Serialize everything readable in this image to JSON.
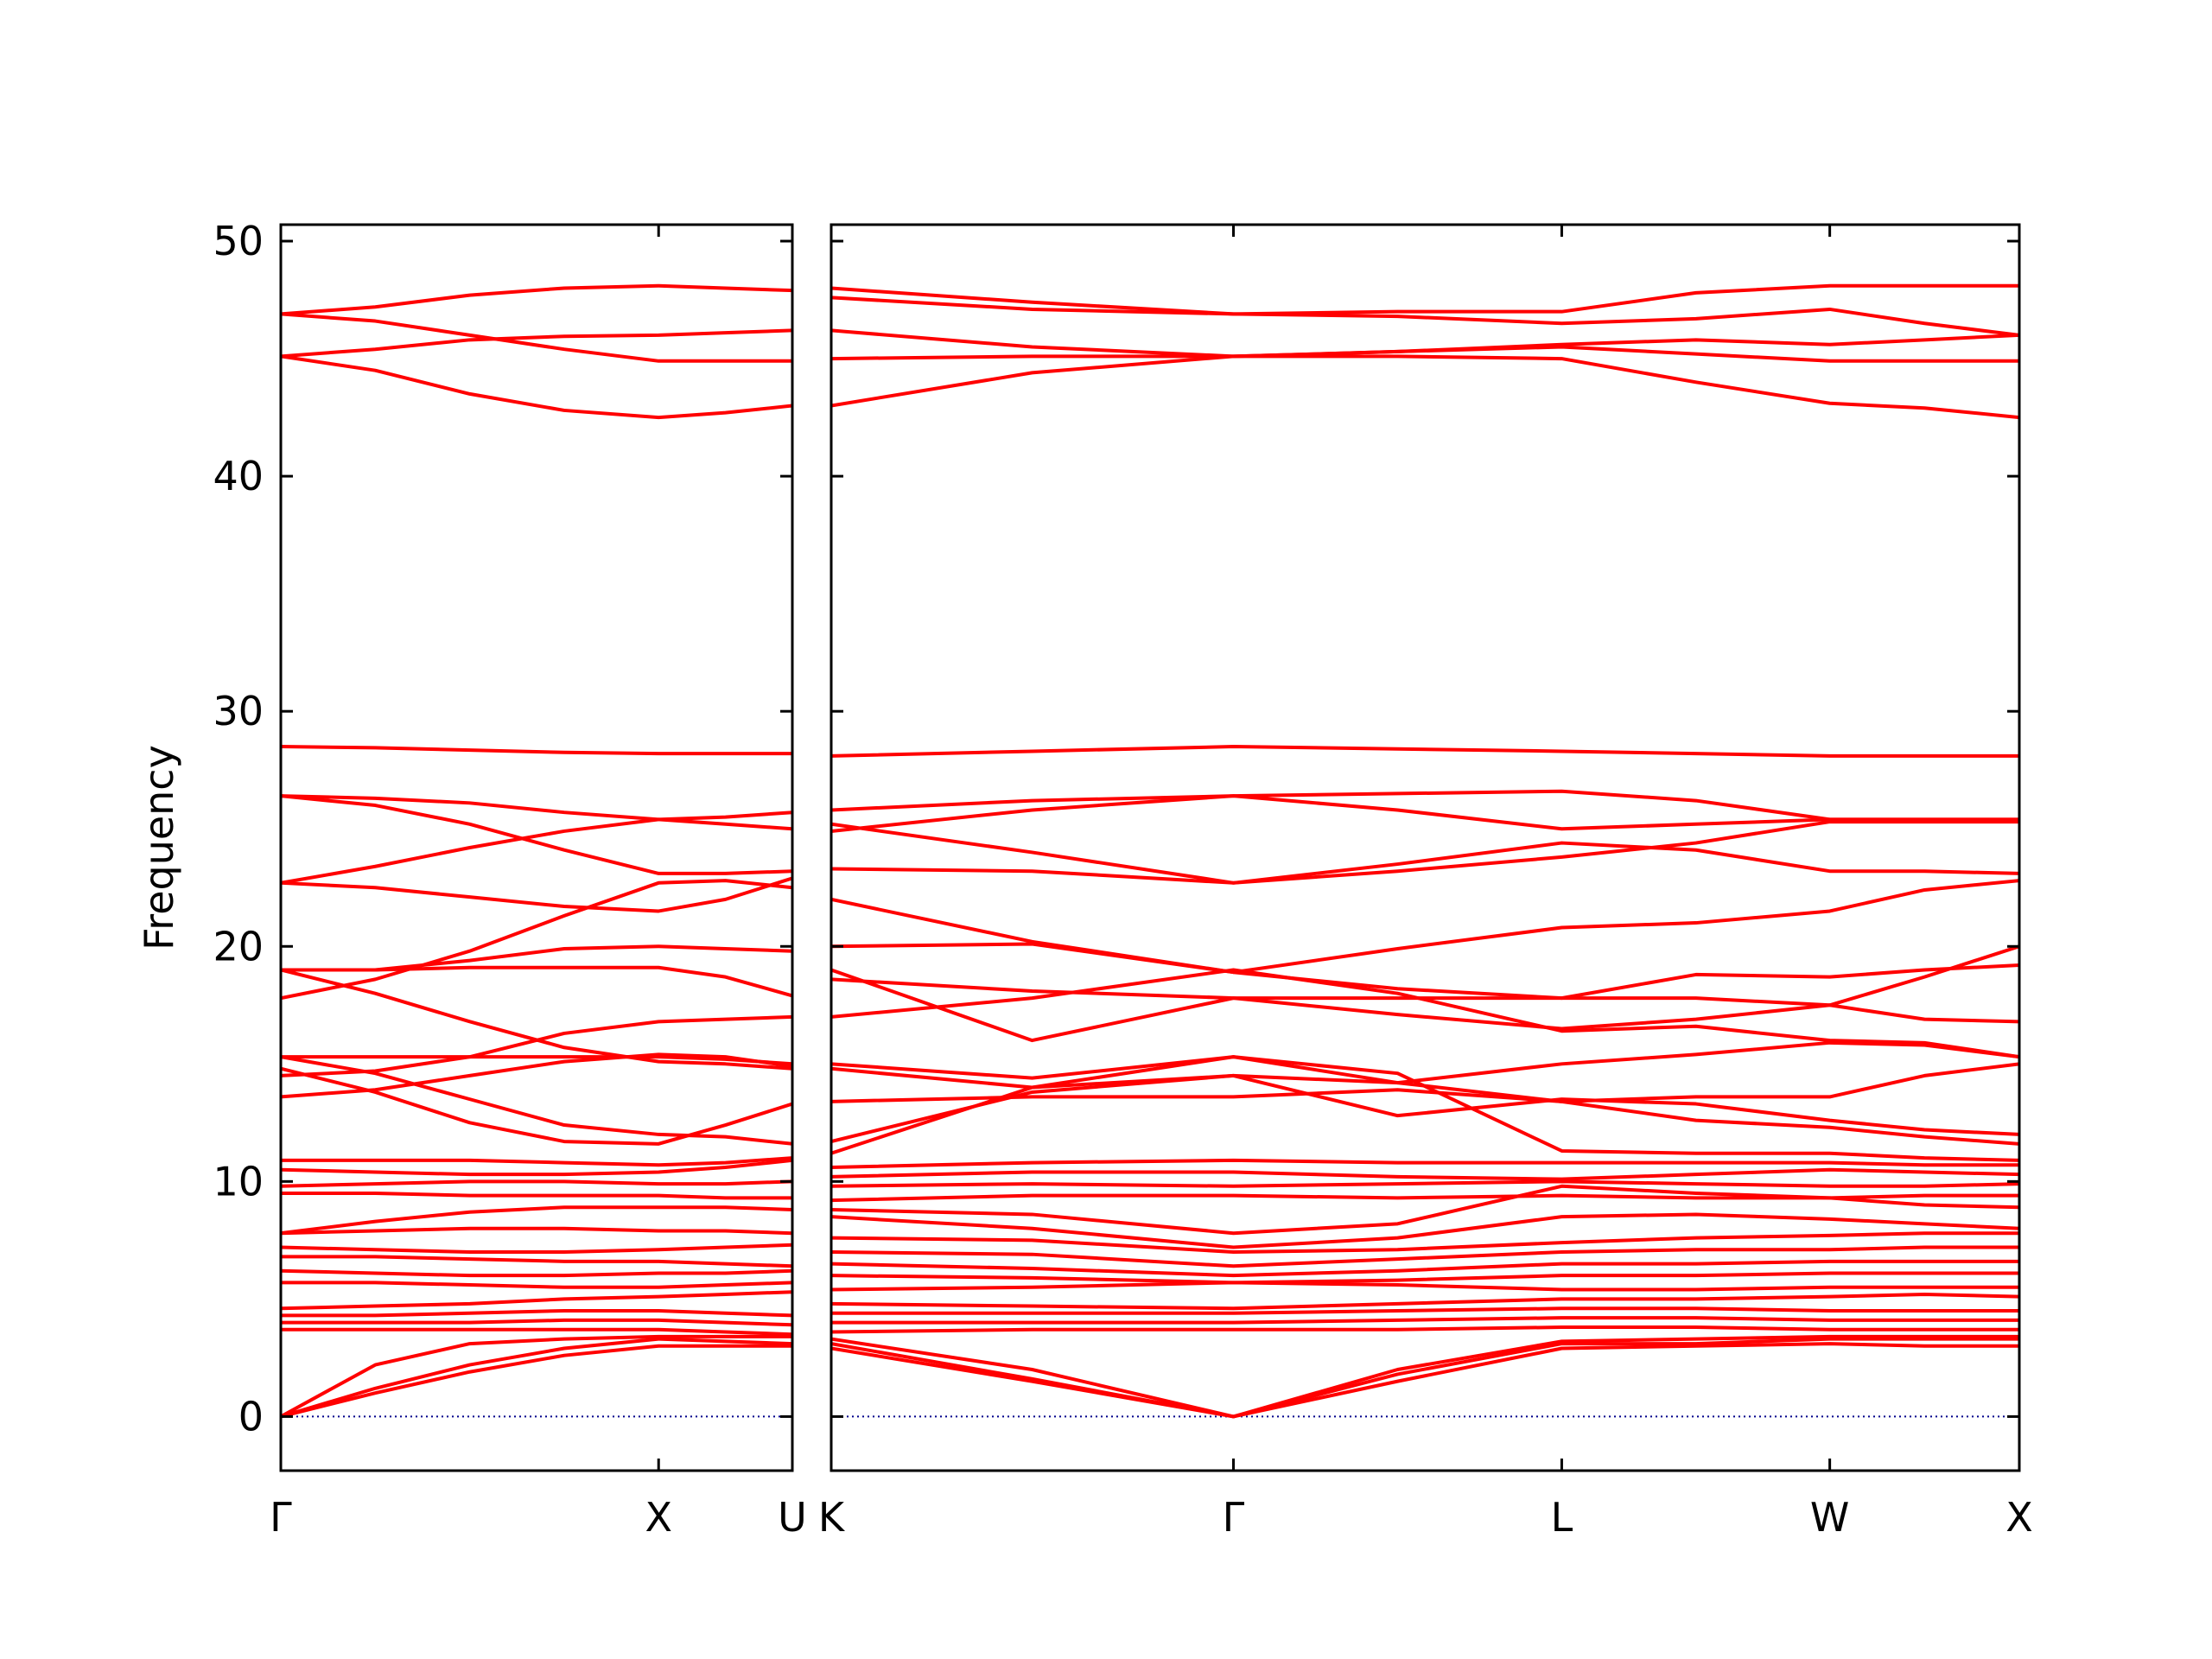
{
  "chart_data": [
    {
      "type": "line",
      "ylabel": "Frequency",
      "color": "#ff0000",
      "x": [
        0,
        0.25,
        0.5,
        0.75,
        1.0,
        1.177,
        1.354
      ],
      "xlim": [
        0,
        1.354
      ],
      "xticks": [
        {
          "value": 0,
          "label": "Γ"
        },
        {
          "value": 1.0,
          "label": "X"
        },
        {
          "value": 1.354,
          "label": "U"
        }
      ],
      "ylim": [
        -2.3,
        50.7
      ],
      "yticks": [
        0,
        10,
        20,
        30,
        40,
        50
      ],
      "zero_line": {
        "value": 0,
        "color": "#00008b"
      },
      "series": [
        {
          "values": [
            46.9,
            47.2,
            47.7,
            48.0,
            48.1,
            48.0,
            47.9
          ]
        },
        {
          "values": [
            46.9,
            46.6,
            46.0,
            45.4,
            44.9,
            44.9,
            44.9
          ]
        },
        {
          "values": [
            45.1,
            45.4,
            45.8,
            45.95,
            46.0,
            46.1,
            46.2
          ]
        },
        {
          "values": [
            45.1,
            44.5,
            43.5,
            42.8,
            42.5,
            42.7,
            43.0
          ]
        },
        {
          "values": [
            28.5,
            28.45,
            28.35,
            28.25,
            28.2,
            28.2,
            28.2
          ]
        },
        {
          "values": [
            26.4,
            26.3,
            26.1,
            25.7,
            25.4,
            25.5,
            25.7
          ]
        },
        {
          "values": [
            26.4,
            26.0,
            25.2,
            24.1,
            23.1,
            23.1,
            23.2
          ]
        },
        {
          "values": [
            22.7,
            23.4,
            24.2,
            24.9,
            25.4,
            25.2,
            25.0
          ]
        },
        {
          "values": [
            22.7,
            22.5,
            22.1,
            21.7,
            21.5,
            22.0,
            22.9
          ]
        },
        {
          "values": [
            17.8,
            18.6,
            19.8,
            21.3,
            22.7,
            22.8,
            22.5
          ]
        },
        {
          "values": [
            19.0,
            19.0,
            19.1,
            19.1,
            19.1,
            18.7,
            17.9
          ]
        },
        {
          "values": [
            19.0,
            19.0,
            19.4,
            19.9,
            20.0,
            19.9,
            19.8
          ]
        },
        {
          "values": [
            19.0,
            18.0,
            16.8,
            15.7,
            15.1,
            15.0,
            14.8
          ]
        },
        {
          "values": [
            15.3,
            15.3,
            15.3,
            15.3,
            15.3,
            15.2,
            15.0
          ]
        },
        {
          "values": [
            14.5,
            14.7,
            15.3,
            16.3,
            16.8,
            16.9,
            17.0
          ]
        },
        {
          "values": [
            15.3,
            14.6,
            13.5,
            12.4,
            12.0,
            11.9,
            11.6
          ]
        },
        {
          "values": [
            13.6,
            13.9,
            14.5,
            15.1,
            15.4,
            15.3,
            14.9
          ]
        },
        {
          "values": [
            14.8,
            13.8,
            12.5,
            11.7,
            11.6,
            12.4,
            13.3
          ]
        },
        {
          "values": [
            10.9,
            10.9,
            10.9,
            10.8,
            10.7,
            10.8,
            11.0
          ]
        },
        {
          "values": [
            10.5,
            10.4,
            10.3,
            10.3,
            10.4,
            10.6,
            10.9
          ]
        },
        {
          "values": [
            9.8,
            9.9,
            10.0,
            10.0,
            9.9,
            9.9,
            10.0
          ]
        },
        {
          "values": [
            9.5,
            9.5,
            9.4,
            9.4,
            9.4,
            9.3,
            9.3
          ]
        },
        {
          "values": [
            7.8,
            8.3,
            8.7,
            8.9,
            8.9,
            8.9,
            8.8
          ]
        },
        {
          "values": [
            7.8,
            7.9,
            8.0,
            8.0,
            7.9,
            7.9,
            7.8
          ]
        },
        {
          "values": [
            7.2,
            7.1,
            7.0,
            7.0,
            7.1,
            7.2,
            7.3
          ]
        },
        {
          "values": [
            6.8,
            6.8,
            6.7,
            6.6,
            6.6,
            6.5,
            6.4
          ]
        },
        {
          "values": [
            6.2,
            6.1,
            6.0,
            6.0,
            6.1,
            6.1,
            6.2
          ]
        },
        {
          "values": [
            5.7,
            5.7,
            5.6,
            5.5,
            5.5,
            5.6,
            5.7
          ]
        },
        {
          "values": [
            4.6,
            4.7,
            4.8,
            5.0,
            5.1,
            5.2,
            5.3
          ]
        },
        {
          "values": [
            4.3,
            4.3,
            4.4,
            4.5,
            4.5,
            4.4,
            4.3
          ]
        },
        {
          "values": [
            4.0,
            4.0,
            4.0,
            4.1,
            4.1,
            4.0,
            3.9
          ]
        },
        {
          "values": [
            3.7,
            3.7,
            3.7,
            3.7,
            3.7,
            3.6,
            3.5
          ]
        },
        {
          "values": [
            0,
            2.2,
            3.1,
            3.3,
            3.4,
            3.4,
            3.4
          ]
        },
        {
          "values": [
            0,
            1.0,
            1.9,
            2.6,
            3.0,
            3.0,
            3.0
          ]
        },
        {
          "values": [
            0,
            1.2,
            2.2,
            2.9,
            3.3,
            3.2,
            3.1
          ]
        }
      ]
    },
    {
      "type": "line",
      "color": "#ff0000",
      "x": [
        0,
        0.53,
        1.061,
        1.494,
        1.927,
        2.281,
        2.634,
        2.884,
        3.134
      ],
      "xlim": [
        0,
        3.134
      ],
      "xticks": [
        {
          "value": 0,
          "label": "K"
        },
        {
          "value": 1.061,
          "label": "Γ"
        },
        {
          "value": 1.927,
          "label": "L"
        },
        {
          "value": 2.634,
          "label": "W"
        },
        {
          "value": 3.134,
          "label": "X"
        }
      ],
      "ylim": [
        -2.3,
        50.7
      ],
      "yticks": [
        0,
        10,
        20,
        30,
        40,
        50
      ],
      "zero_line": {
        "value": 0,
        "color": "#00008b"
      },
      "series": [
        {
          "values": [
            48.0,
            47.4,
            46.9,
            47.0,
            47.0,
            47.8,
            48.1,
            48.1,
            48.1
          ]
        },
        {
          "values": [
            47.6,
            47.1,
            46.9,
            46.8,
            46.5,
            46.7,
            47.1,
            46.5,
            46.0
          ]
        },
        {
          "values": [
            46.2,
            45.5,
            45.1,
            45.3,
            45.6,
            45.8,
            45.6,
            45.8,
            46.0
          ]
        },
        {
          "values": [
            45.0,
            45.1,
            45.1,
            45.1,
            45.0,
            44.0,
            43.1,
            42.9,
            42.5
          ]
        },
        {
          "values": [
            43.0,
            44.4,
            45.1,
            45.3,
            45.5,
            45.2,
            44.9,
            44.9,
            44.9
          ]
        },
        {
          "values": [
            28.1,
            28.3,
            28.5,
            28.4,
            28.3,
            28.2,
            28.1,
            28.1,
            28.1
          ]
        },
        {
          "values": [
            25.8,
            26.2,
            26.4,
            26.5,
            26.6,
            26.2,
            25.4,
            25.4,
            25.4
          ]
        },
        {
          "values": [
            25.2,
            24.0,
            22.7,
            23.5,
            24.4,
            24.1,
            23.2,
            23.2,
            23.1
          ]
        },
        {
          "values": [
            24.9,
            25.8,
            26.4,
            25.8,
            25.0,
            25.2,
            25.4,
            25.4,
            25.4
          ]
        },
        {
          "values": [
            23.3,
            23.2,
            22.7,
            23.2,
            23.8,
            24.4,
            25.3,
            25.3,
            25.3
          ]
        },
        {
          "values": [
            22.0,
            20.2,
            18.9,
            19.9,
            20.8,
            21.0,
            21.5,
            22.4,
            22.8
          ]
        },
        {
          "values": [
            20.0,
            20.1,
            18.9,
            18.2,
            17.8,
            17.8,
            17.5,
            16.9,
            16.8
          ]
        },
        {
          "values": [
            19.0,
            16.0,
            17.8,
            17.8,
            17.8,
            18.8,
            18.7,
            19.0,
            19.2
          ]
        },
        {
          "values": [
            18.6,
            18.1,
            17.8,
            17.1,
            16.5,
            16.9,
            17.5,
            18.7,
            20.0
          ]
        },
        {
          "values": [
            17.0,
            17.8,
            19.0,
            18.0,
            16.4,
            16.6,
            16.0,
            15.9,
            15.3
          ]
        },
        {
          "values": [
            15.0,
            14.4,
            15.3,
            14.2,
            13.4,
            13.6,
            13.6,
            14.5,
            15.0
          ]
        },
        {
          "values": [
            14.8,
            14.0,
            14.5,
            14.2,
            15.0,
            15.4,
            15.9,
            15.8,
            15.3
          ]
        },
        {
          "values": [
            13.4,
            13.6,
            13.6,
            13.9,
            13.4,
            12.6,
            12.3,
            11.9,
            11.6
          ]
        },
        {
          "values": [
            11.7,
            13.8,
            14.5,
            12.8,
            13.5,
            13.3,
            12.6,
            12.2,
            12.0
          ]
        },
        {
          "values": [
            11.2,
            14.0,
            15.3,
            14.6,
            11.3,
            11.2,
            11.2,
            11.0,
            10.9
          ]
        },
        {
          "values": [
            10.6,
            10.8,
            10.9,
            10.8,
            10.8,
            10.8,
            10.8,
            10.7,
            10.7
          ]
        },
        {
          "values": [
            10.2,
            10.4,
            10.4,
            10.2,
            10.1,
            10.3,
            10.5,
            10.4,
            10.3
          ]
        },
        {
          "values": [
            9.8,
            9.9,
            9.8,
            9.9,
            10.0,
            9.9,
            9.8,
            9.8,
            9.9
          ]
        },
        {
          "values": [
            9.2,
            9.4,
            9.4,
            9.3,
            9.4,
            9.3,
            9.3,
            9.4,
            9.4
          ]
        },
        {
          "values": [
            8.8,
            8.6,
            7.8,
            8.2,
            9.8,
            9.5,
            9.3,
            9.0,
            8.9
          ]
        },
        {
          "values": [
            8.5,
            8.0,
            7.2,
            7.6,
            8.5,
            8.6,
            8.4,
            8.2,
            8.0
          ]
        },
        {
          "values": [
            7.6,
            7.5,
            7.0,
            7.1,
            7.4,
            7.6,
            7.7,
            7.8,
            7.8
          ]
        },
        {
          "values": [
            7.0,
            6.9,
            6.4,
            6.7,
            7.0,
            7.1,
            7.1,
            7.2,
            7.2
          ]
        },
        {
          "values": [
            6.5,
            6.3,
            6.0,
            6.2,
            6.5,
            6.5,
            6.6,
            6.6,
            6.6
          ]
        },
        {
          "values": [
            6.0,
            5.9,
            5.7,
            5.8,
            6.0,
            6.0,
            6.1,
            6.1,
            6.1
          ]
        },
        {
          "values": [
            5.4,
            5.5,
            5.7,
            5.6,
            5.4,
            5.4,
            5.5,
            5.5,
            5.5
          ]
        },
        {
          "values": [
            4.8,
            4.7,
            4.6,
            4.8,
            5.0,
            5.0,
            5.1,
            5.2,
            5.1
          ]
        },
        {
          "values": [
            4.4,
            4.4,
            4.4,
            4.5,
            4.6,
            4.6,
            4.5,
            4.5,
            4.5
          ]
        },
        {
          "values": [
            4.0,
            4.0,
            4.0,
            4.1,
            4.2,
            4.2,
            4.1,
            4.1,
            4.1
          ]
        },
        {
          "values": [
            3.6,
            3.7,
            3.7,
            3.7,
            3.8,
            3.8,
            3.7,
            3.7,
            3.7
          ]
        },
        {
          "values": [
            3.3,
            2.0,
            0,
            2.0,
            3.2,
            3.3,
            3.4,
            3.4,
            3.4
          ]
        },
        {
          "values": [
            3.1,
            1.6,
            0,
            1.5,
            2.9,
            3.0,
            3.1,
            3.0,
            3.0
          ]
        },
        {
          "values": [
            2.9,
            1.5,
            0,
            1.8,
            3.1,
            3.1,
            3.3,
            3.3,
            3.3
          ]
        }
      ]
    }
  ]
}
